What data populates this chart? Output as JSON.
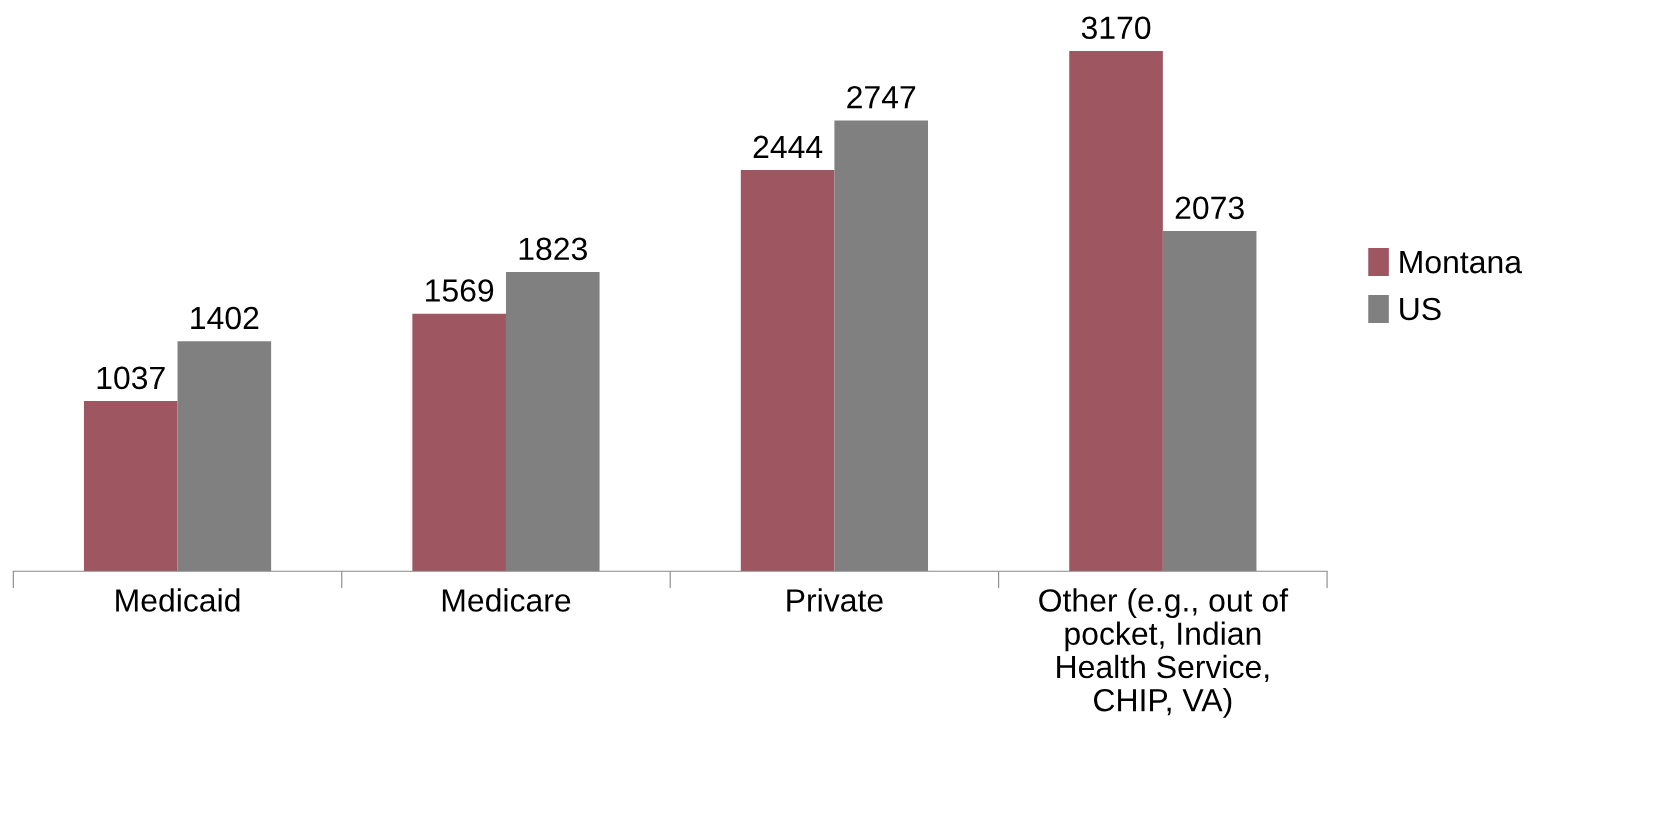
{
  "chart_data": {
    "type": "bar",
    "categories": [
      "Medicaid",
      "Medicare",
      "Private",
      "Other (e.g., out of pocket, Indian Health Service, CHIP, VA)"
    ],
    "series": [
      {
        "name": "Montana",
        "color": "#9e5660",
        "values": [
          1037,
          1569,
          2444,
          3170
        ]
      },
      {
        "name": "US",
        "color": "#808080",
        "values": [
          1402,
          1823,
          2747,
          2073
        ]
      }
    ],
    "data_labels": true,
    "legend": "right",
    "grid": false
  }
}
